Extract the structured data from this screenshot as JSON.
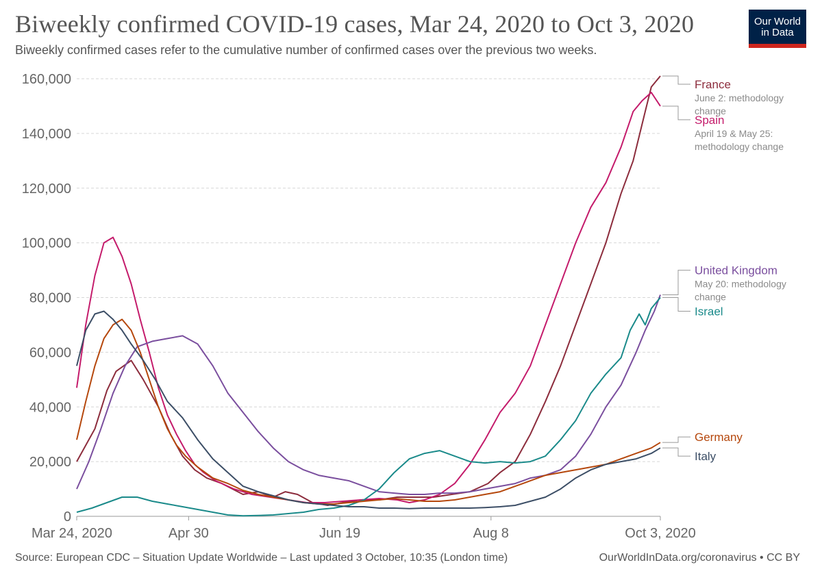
{
  "header": {
    "title": "Biweekly confirmed COVID-19 cases, Mar 24, 2020 to Oct 3, 2020",
    "subtitle": "Biweekly confirmed cases refer to the cumulative number of confirmed cases over the previous two weeks."
  },
  "logo": {
    "line1": "Our World",
    "line2": "in Data"
  },
  "footer": {
    "source": "Source: European CDC – Situation Update Worldwide – Last updated 3 October, 10:35 (London time)",
    "credit": "OurWorldInData.org/coronavirus • CC BY"
  },
  "chart_data": {
    "type": "line",
    "title": "Biweekly confirmed COVID-19 cases, Mar 24, 2020 to Oct 3, 2020",
    "xlabel": "",
    "ylabel": "",
    "x_unit": "days since Mar 24, 2020",
    "xlim": [
      0,
      193
    ],
    "ylim": [
      0,
      160000
    ],
    "yticks": [
      {
        "value": 0,
        "label": "0"
      },
      {
        "value": 20000,
        "label": "20,000"
      },
      {
        "value": 40000,
        "label": "40,000"
      },
      {
        "value": 60000,
        "label": "60,000"
      },
      {
        "value": 80000,
        "label": "80,000"
      },
      {
        "value": 100000,
        "label": "100,000"
      },
      {
        "value": 120000,
        "label": "120,000"
      },
      {
        "value": 140000,
        "label": "140,000"
      },
      {
        "value": 160000,
        "label": "160,000"
      }
    ],
    "xticks": [
      {
        "value": 0,
        "label": "Mar 24, 2020"
      },
      {
        "value": 37,
        "label": "Apr 30"
      },
      {
        "value": 87,
        "label": "Jun 19"
      },
      {
        "value": 137,
        "label": "Aug 8"
      },
      {
        "value": 193,
        "label": "Oct 3, 2020"
      }
    ],
    "grid": true,
    "series": [
      {
        "name": "France",
        "color": "#8c2c3c",
        "note": [
          "June 2: methodology",
          "change"
        ],
        "label_value": 158000,
        "x": [
          0,
          6,
          10,
          13,
          18,
          22,
          27,
          31,
          35,
          39,
          43,
          48,
          55,
          60,
          65,
          69,
          73,
          78,
          83,
          88,
          94,
          100,
          106,
          112,
          118,
          124,
          130,
          136,
          140,
          145,
          150,
          155,
          160,
          165,
          170,
          175,
          180,
          184,
          188,
          190,
          193
        ],
        "y": [
          20000,
          32000,
          46000,
          53000,
          57000,
          50000,
          40000,
          30000,
          22000,
          17000,
          14000,
          12000,
          8000,
          9000,
          7000,
          9000,
          8000,
          5000,
          4000,
          5000,
          6000,
          6000,
          7000,
          7000,
          7000,
          8000,
          9000,
          12000,
          16000,
          20000,
          30000,
          42000,
          55000,
          70000,
          85000,
          100000,
          118000,
          130000,
          148000,
          157000,
          161000
        ]
      },
      {
        "name": "Spain",
        "color": "#c41b6b",
        "note": [
          "April 19 & May 25:",
          "methodology change"
        ],
        "label_value": 145000,
        "x": [
          0,
          3,
          6,
          9,
          12,
          15,
          18,
          21,
          24,
          27,
          30,
          33,
          36,
          39,
          42,
          46,
          52,
          58,
          64,
          70,
          76,
          82,
          88,
          94,
          100,
          106,
          110,
          115,
          120,
          125,
          130,
          135,
          140,
          145,
          150,
          155,
          160,
          165,
          170,
          175,
          180,
          184,
          187,
          190,
          193
        ],
        "y": [
          47000,
          70000,
          88000,
          100000,
          102000,
          95000,
          85000,
          72000,
          60000,
          47000,
          37000,
          30000,
          24000,
          19000,
          16000,
          13000,
          10000,
          8000,
          7000,
          6000,
          5000,
          5000,
          5500,
          6000,
          6500,
          6000,
          5000,
          6000,
          8000,
          12000,
          19000,
          28000,
          38000,
          45000,
          55000,
          70000,
          85000,
          100000,
          113000,
          122000,
          135000,
          148000,
          152000,
          155000,
          150000
        ]
      },
      {
        "name": "United Kingdom",
        "color": "#7a4e9e",
        "note": [
          "May 20: methodology",
          "change"
        ],
        "label_value": 90000,
        "x": [
          0,
          4,
          8,
          12,
          16,
          20,
          25,
          30,
          35,
          40,
          45,
          50,
          55,
          60,
          65,
          70,
          75,
          80,
          85,
          90,
          95,
          100,
          105,
          110,
          115,
          120,
          125,
          130,
          135,
          140,
          145,
          150,
          155,
          160,
          165,
          170,
          175,
          180,
          185,
          188,
          191,
          193
        ],
        "y": [
          10000,
          20000,
          32000,
          45000,
          55000,
          62000,
          64000,
          65000,
          66000,
          63000,
          55000,
          45000,
          38000,
          31000,
          25000,
          20000,
          17000,
          15000,
          14000,
          13000,
          11000,
          9000,
          8500,
          8000,
          8000,
          8500,
          8500,
          9000,
          10000,
          11000,
          12000,
          14000,
          15000,
          17000,
          22000,
          30000,
          40000,
          48000,
          60000,
          68000,
          75000,
          81000
        ]
      },
      {
        "name": "Israel",
        "color": "#1a8a8a",
        "note": [],
        "label_value": 75000,
        "x": [
          0,
          5,
          10,
          15,
          20,
          25,
          30,
          35,
          40,
          45,
          50,
          55,
          60,
          65,
          70,
          75,
          80,
          85,
          90,
          95,
          100,
          105,
          110,
          115,
          120,
          125,
          130,
          135,
          140,
          145,
          150,
          155,
          160,
          165,
          170,
          175,
          180,
          183,
          186,
          188,
          190,
          193
        ],
        "y": [
          1500,
          3000,
          5000,
          7000,
          7000,
          5500,
          4500,
          3500,
          2500,
          1500,
          500,
          200,
          300,
          500,
          1000,
          1500,
          2500,
          3000,
          4000,
          6000,
          10000,
          16000,
          21000,
          23000,
          24000,
          22000,
          20000,
          19500,
          20000,
          19500,
          20000,
          22000,
          28000,
          35000,
          45000,
          52000,
          58000,
          68000,
          74000,
          70000,
          76000,
          80000
        ]
      },
      {
        "name": "Germany",
        "color": "#b5470c",
        "note": [],
        "label_value": 29000,
        "x": [
          0,
          3,
          6,
          9,
          12,
          15,
          18,
          21,
          24,
          27,
          30,
          33,
          36,
          40,
          45,
          50,
          55,
          60,
          65,
          70,
          75,
          80,
          85,
          90,
          95,
          100,
          105,
          110,
          115,
          120,
          125,
          130,
          135,
          140,
          145,
          150,
          155,
          160,
          165,
          170,
          175,
          180,
          185,
          190,
          193
        ],
        "y": [
          28000,
          42000,
          55000,
          65000,
          70000,
          72000,
          68000,
          60000,
          50000,
          40000,
          32000,
          26000,
          22000,
          18000,
          14000,
          12000,
          9500,
          8000,
          7000,
          6000,
          5000,
          4500,
          4500,
          5000,
          5500,
          6000,
          6500,
          6000,
          5500,
          5500,
          6000,
          7000,
          8000,
          9000,
          11000,
          13000,
          15000,
          16000,
          17000,
          18000,
          19000,
          21000,
          23000,
          25000,
          27000
        ]
      },
      {
        "name": "Italy",
        "color": "#3c4e66",
        "note": [],
        "label_value": 22000,
        "x": [
          0,
          3,
          6,
          9,
          12,
          15,
          18,
          22,
          26,
          30,
          35,
          40,
          45,
          50,
          55,
          60,
          65,
          70,
          75,
          80,
          85,
          90,
          95,
          100,
          105,
          110,
          115,
          120,
          125,
          130,
          135,
          140,
          145,
          150,
          155,
          160,
          165,
          170,
          175,
          180,
          185,
          190,
          193
        ],
        "y": [
          55000,
          68000,
          74000,
          75000,
          72000,
          68000,
          63000,
          57000,
          50000,
          42000,
          36000,
          28000,
          21000,
          16000,
          11000,
          9000,
          7500,
          6000,
          5000,
          4500,
          4000,
          3500,
          3500,
          3000,
          3000,
          2800,
          3000,
          3000,
          3000,
          3000,
          3200,
          3500,
          4000,
          5500,
          7000,
          10000,
          14000,
          17000,
          19000,
          20000,
          21000,
          23000,
          25000
        ]
      }
    ]
  }
}
